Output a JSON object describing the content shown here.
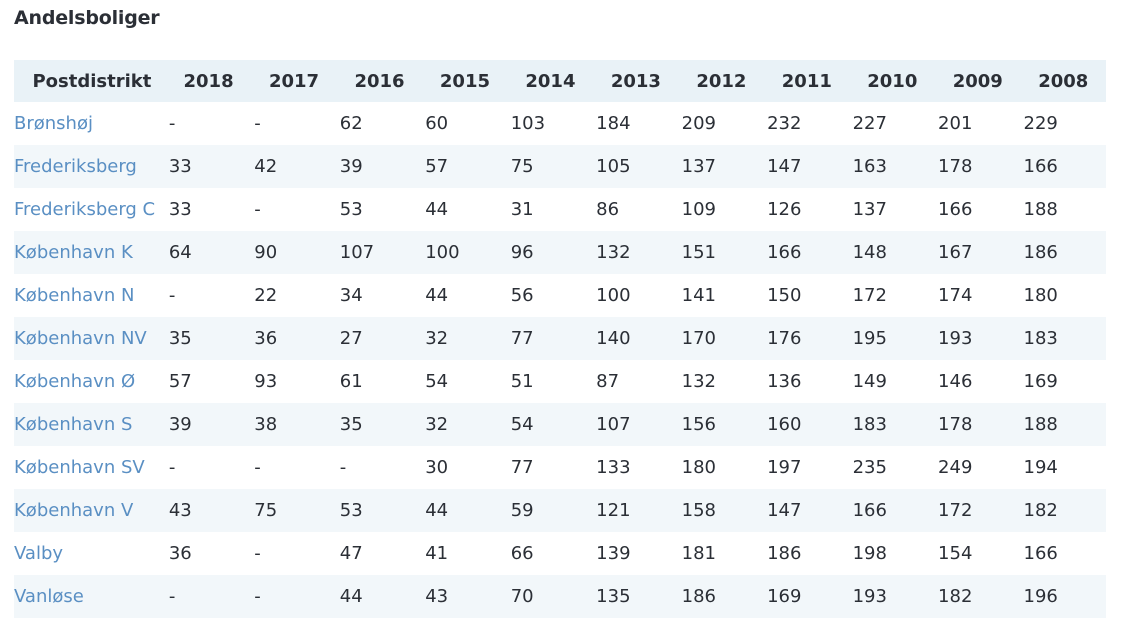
{
  "title": "Andelsboliger",
  "table": {
    "district_header": "Postdistrikt",
    "years": [
      "2018",
      "2017",
      "2016",
      "2015",
      "2014",
      "2013",
      "2012",
      "2011",
      "2010",
      "2009",
      "2008"
    ],
    "rows": [
      {
        "district": "Brønshøj",
        "values": [
          "-",
          "-",
          "62",
          "60",
          "103",
          "184",
          "209",
          "232",
          "227",
          "201",
          "229"
        ]
      },
      {
        "district": "Frederiksberg",
        "values": [
          "33",
          "42",
          "39",
          "57",
          "75",
          "105",
          "137",
          "147",
          "163",
          "178",
          "166"
        ]
      },
      {
        "district": "Frederiksberg C",
        "values": [
          "33",
          "-",
          "53",
          "44",
          "31",
          "86",
          "109",
          "126",
          "137",
          "166",
          "188"
        ]
      },
      {
        "district": "København K",
        "values": [
          "64",
          "90",
          "107",
          "100",
          "96",
          "132",
          "151",
          "166",
          "148",
          "167",
          "186"
        ]
      },
      {
        "district": "København N",
        "values": [
          "-",
          "22",
          "34",
          "44",
          "56",
          "100",
          "141",
          "150",
          "172",
          "174",
          "180"
        ]
      },
      {
        "district": "København NV",
        "values": [
          "35",
          "36",
          "27",
          "32",
          "77",
          "140",
          "170",
          "176",
          "195",
          "193",
          "183"
        ]
      },
      {
        "district": "København Ø",
        "values": [
          "57",
          "93",
          "61",
          "54",
          "51",
          "87",
          "132",
          "136",
          "149",
          "146",
          "169"
        ]
      },
      {
        "district": "København S",
        "values": [
          "39",
          "38",
          "35",
          "32",
          "54",
          "107",
          "156",
          "160",
          "183",
          "178",
          "188"
        ]
      },
      {
        "district": "København SV",
        "values": [
          "-",
          "-",
          "-",
          "30",
          "77",
          "133",
          "180",
          "197",
          "235",
          "249",
          "194"
        ]
      },
      {
        "district": "København V",
        "values": [
          "43",
          "75",
          "53",
          "44",
          "59",
          "121",
          "158",
          "147",
          "166",
          "172",
          "182"
        ]
      },
      {
        "district": "Valby",
        "values": [
          "36",
          "-",
          "47",
          "41",
          "66",
          "139",
          "181",
          "186",
          "198",
          "154",
          "166"
        ]
      },
      {
        "district": "Vanløse",
        "values": [
          "-",
          "-",
          "44",
          "43",
          "70",
          "135",
          "186",
          "169",
          "193",
          "182",
          "196"
        ]
      }
    ]
  },
  "colors": {
    "header_bg": "#e9f2f7",
    "stripe_bg": "#f2f7fa",
    "link": "#5a8fc3",
    "text": "#2b2f36"
  }
}
